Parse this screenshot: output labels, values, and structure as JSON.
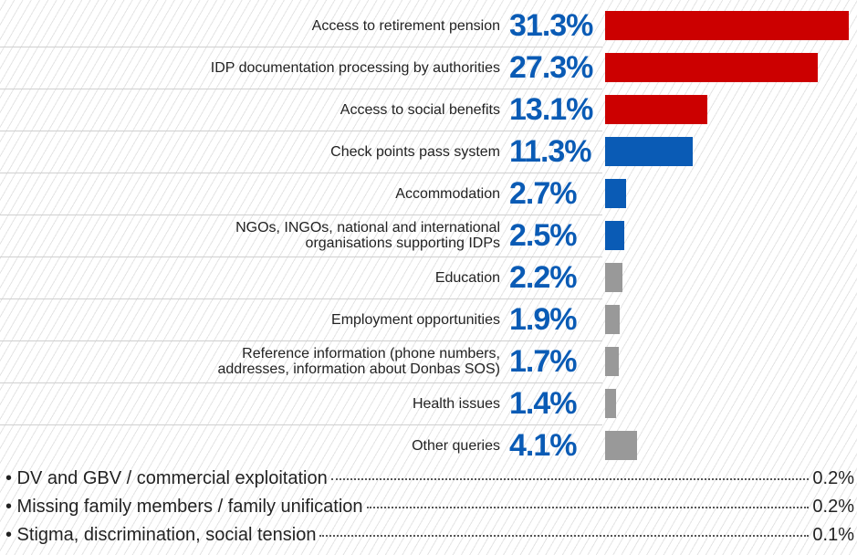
{
  "chart_data": {
    "type": "bar",
    "categories": [
      "Access to retirement pension",
      "IDP documentation processing by authorities",
      "Access to social benefits",
      "Check points pass system",
      "Accommodation",
      "NGOs, INGOs, national and international\norganisations supporting IDPs",
      "Education",
      "Employment opportunities",
      "Reference information (phone numbers,\naddresses, information about Donbas SOS)",
      "Health issues",
      "Other queries"
    ],
    "values": [
      31.3,
      27.3,
      13.1,
      11.3,
      2.7,
      2.5,
      2.2,
      1.9,
      1.7,
      1.4,
      4.1
    ],
    "value_labels": [
      "31.3%",
      "27.3%",
      "13.1%",
      "11.3%",
      "2.7%",
      "2.5%",
      "2.2%",
      "1.9%",
      "1.7%",
      "1.4%",
      "4.1%"
    ],
    "colors": [
      "#cc0000",
      "#cc0000",
      "#cc0000",
      "#0a5bb5",
      "#0a5bb5",
      "#0a5bb5",
      "#999999",
      "#999999",
      "#999999",
      "#999999",
      "#999999"
    ]
  },
  "other_items": [
    {
      "label": "DV and GBV / commercial exploitation",
      "value": "0.2%"
    },
    {
      "label": "Missing family members / family unification",
      "value": "0.2%"
    },
    {
      "label": "Stigma, discrimination, social tension",
      "value": "0.1%"
    }
  ]
}
